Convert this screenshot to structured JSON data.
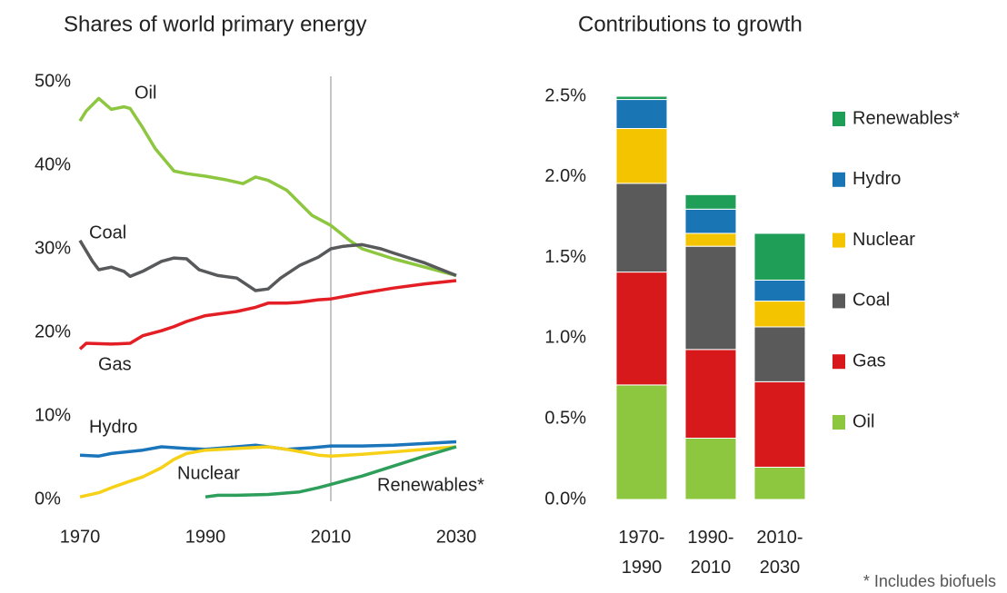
{
  "chart_data": [
    {
      "type": "line",
      "title": "Shares of world primary energy",
      "xlim": [
        1970,
        2030
      ],
      "xticks": [
        1970,
        1990,
        2010,
        2030
      ],
      "ylim": [
        0,
        50
      ],
      "yticks": [
        {
          "value": 0,
          "label": "0%"
        },
        {
          "value": 10,
          "label": "10%"
        },
        {
          "value": 20,
          "label": "20%"
        },
        {
          "value": 30,
          "label": "30%"
        },
        {
          "value": 40,
          "label": "40%"
        },
        {
          "value": 50,
          "label": "50%"
        }
      ],
      "grid": false,
      "divider_x": 2010,
      "series": [
        {
          "name": "Oil",
          "color": "#8dc63f",
          "x": [
            1970,
            1971,
            1973,
            1975,
            1977,
            1978,
            1980,
            1982,
            1985,
            1987,
            1990,
            1993,
            1996,
            1998,
            2000,
            2003,
            2005,
            2007,
            2010,
            2013,
            2015,
            2020,
            2025,
            2030
          ],
          "values": [
            45.3,
            46.5,
            48,
            46.7,
            47,
            46.8,
            44.5,
            42,
            39.3,
            39,
            38.7,
            38.3,
            37.8,
            38.6,
            38.2,
            37,
            35.5,
            34,
            32.8,
            31,
            30,
            28.8,
            27.8,
            26.8
          ]
        },
        {
          "name": "Coal",
          "color": "#58595b",
          "x": [
            1970,
            1972,
            1973,
            1975,
            1977,
            1978,
            1980,
            1983,
            1985,
            1987,
            1989,
            1992,
            1995,
            1998,
            2000,
            2002,
            2005,
            2008,
            2010,
            2012,
            2015,
            2018,
            2020,
            2025,
            2030
          ],
          "values": [
            31,
            28.5,
            27.5,
            27.8,
            27.3,
            26.7,
            27.3,
            28.5,
            28.9,
            28.8,
            27.5,
            26.8,
            26.5,
            25,
            25.2,
            26.5,
            28,
            29,
            30,
            30.3,
            30.5,
            30,
            29.5,
            28.3,
            26.8
          ]
        },
        {
          "name": "Gas",
          "color": "#e31e24",
          "x": [
            1970,
            1971,
            1975,
            1978,
            1980,
            1983,
            1985,
            1987,
            1990,
            1995,
            1998,
            2000,
            2003,
            2005,
            2008,
            2010,
            2015,
            2020,
            2025,
            2030
          ],
          "values": [
            18,
            18.7,
            18.6,
            18.7,
            19.6,
            20.2,
            20.7,
            21.3,
            22,
            22.5,
            23,
            23.5,
            23.5,
            23.6,
            23.9,
            24,
            24.7,
            25.3,
            25.8,
            26.2
          ]
        },
        {
          "name": "Hydro",
          "color": "#1b75bb",
          "x": [
            1970,
            1973,
            1975,
            1980,
            1983,
            1987,
            1990,
            1995,
            1998,
            2000,
            2003,
            2007,
            2010,
            2015,
            2020,
            2025,
            2030
          ],
          "values": [
            5.3,
            5.2,
            5.5,
            5.9,
            6.3,
            6.1,
            6,
            6.3,
            6.5,
            6.3,
            6,
            6.2,
            6.4,
            6.4,
            6.5,
            6.7,
            6.9
          ]
        },
        {
          "name": "Nuclear",
          "color": "#f7d117",
          "x": [
            1970,
            1973,
            1975,
            1978,
            1980,
            1983,
            1985,
            1987,
            1990,
            1995,
            2000,
            2003,
            2006,
            2008,
            2010,
            2015,
            2020,
            2025,
            2030
          ],
          "values": [
            0.3,
            0.8,
            1.4,
            2.2,
            2.7,
            3.8,
            4.8,
            5.5,
            5.9,
            6.1,
            6.3,
            6,
            5.6,
            5.3,
            5.2,
            5.4,
            5.7,
            6,
            6.3
          ]
        },
        {
          "name": "Renewables*",
          "color": "#2e9e5b",
          "x": [
            1990,
            1992,
            1995,
            2000,
            2005,
            2008,
            2010,
            2015,
            2020,
            2025,
            2030
          ],
          "values": [
            0.3,
            0.5,
            0.5,
            0.6,
            0.9,
            1.4,
            1.8,
            2.8,
            4,
            5.2,
            6.3
          ]
        }
      ]
    },
    {
      "type": "stacked_bar",
      "title": "Contributions to growth",
      "categories": [
        "1970-1990",
        "1990-2010",
        "2010-2030"
      ],
      "ylim": [
        0,
        2.5
      ],
      "yticks": [
        {
          "value": 0,
          "label": "0.0%"
        },
        {
          "value": 0.5,
          "label": "0.5%"
        },
        {
          "value": 1,
          "label": "1.0%"
        },
        {
          "value": 1.5,
          "label": "1.5%"
        },
        {
          "value": 2,
          "label": "2.0%"
        },
        {
          "value": 2.5,
          "label": "2.5%"
        }
      ],
      "legend": "right",
      "series": [
        {
          "name": "Oil",
          "color": "#8dc63f",
          "values": [
            0.71,
            0.38,
            0.2
          ]
        },
        {
          "name": "Gas",
          "color": "#d7191c",
          "values": [
            0.7,
            0.55,
            0.53
          ]
        },
        {
          "name": "Coal",
          "color": "#5a5a5a",
          "values": [
            0.55,
            0.64,
            0.34
          ]
        },
        {
          "name": "Nuclear",
          "color": "#f5c400",
          "values": [
            0.34,
            0.08,
            0.16
          ]
        },
        {
          "name": "Hydro",
          "color": "#1a75b5",
          "values": [
            0.18,
            0.15,
            0.13
          ]
        },
        {
          "name": "Renewables*",
          "color": "#1f9e58",
          "values": [
            0.02,
            0.09,
            0.29
          ]
        }
      ],
      "footnote": "* Includes biofuels"
    }
  ]
}
